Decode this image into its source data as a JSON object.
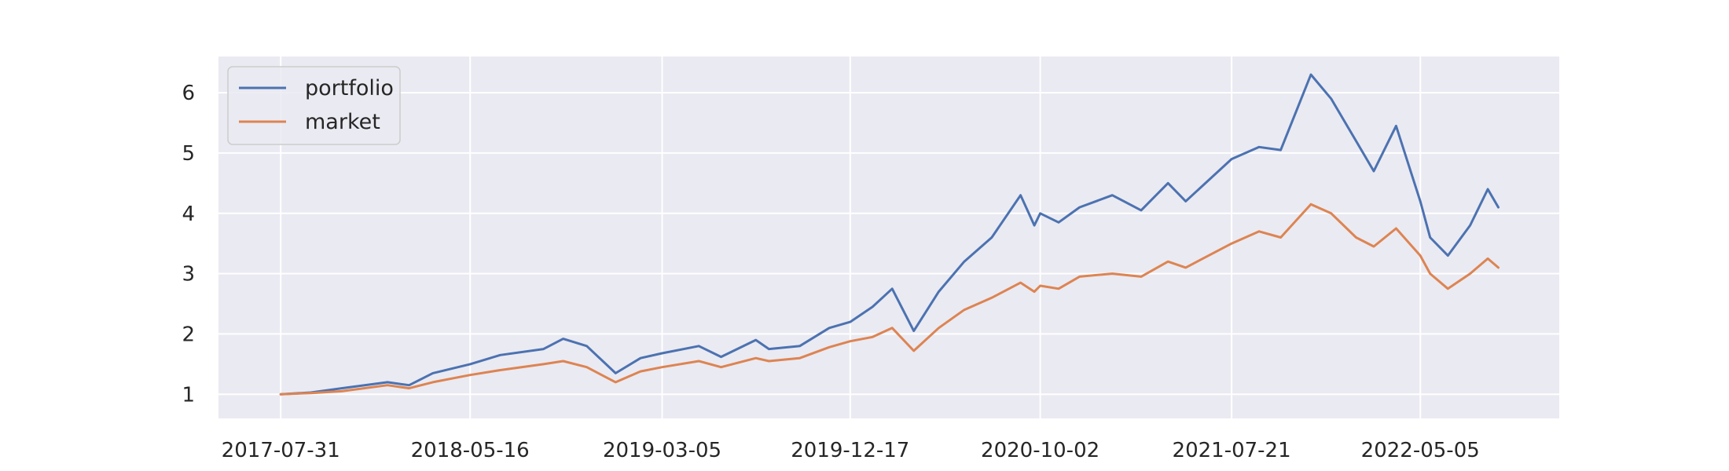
{
  "chart_data": {
    "type": "line",
    "title": "",
    "xlabel": "",
    "ylabel": "",
    "grid": true,
    "legend_position": "top-left",
    "background_color": "#eaeaf2",
    "grid_color": "#ffffff",
    "x_range": [
      "2017-04-27",
      "2022-12-03"
    ],
    "ylim": [
      0.6,
      6.6
    ],
    "x_ticks": [
      "2017-07-31",
      "2018-05-16",
      "2019-03-05",
      "2019-12-17",
      "2020-10-02",
      "2021-07-21",
      "2022-05-05"
    ],
    "y_ticks": [
      1,
      2,
      3,
      4,
      5,
      6
    ],
    "series": [
      {
        "name": "portfolio",
        "color": "#4c72b0",
        "points": [
          [
            "2017-07-31",
            1.0
          ],
          [
            "2017-09-15",
            1.03
          ],
          [
            "2017-11-01",
            1.1
          ],
          [
            "2018-01-10",
            1.2
          ],
          [
            "2018-02-12",
            1.15
          ],
          [
            "2018-03-20",
            1.35
          ],
          [
            "2018-05-16",
            1.5
          ],
          [
            "2018-07-01",
            1.65
          ],
          [
            "2018-09-05",
            1.75
          ],
          [
            "2018-10-05",
            1.92
          ],
          [
            "2018-11-10",
            1.8
          ],
          [
            "2018-12-24",
            1.35
          ],
          [
            "2019-01-31",
            1.6
          ],
          [
            "2019-03-05",
            1.68
          ],
          [
            "2019-04-30",
            1.8
          ],
          [
            "2019-06-03",
            1.62
          ],
          [
            "2019-07-26",
            1.9
          ],
          [
            "2019-08-15",
            1.75
          ],
          [
            "2019-10-01",
            1.8
          ],
          [
            "2019-11-15",
            2.1
          ],
          [
            "2019-12-17",
            2.2
          ],
          [
            "2020-01-20",
            2.45
          ],
          [
            "2020-02-19",
            2.75
          ],
          [
            "2020-03-23",
            2.05
          ],
          [
            "2020-04-30",
            2.7
          ],
          [
            "2020-06-08",
            3.2
          ],
          [
            "2020-07-20",
            3.6
          ],
          [
            "2020-09-02",
            4.3
          ],
          [
            "2020-09-23",
            3.8
          ],
          [
            "2020-10-02",
            4.0
          ],
          [
            "2020-10-30",
            3.85
          ],
          [
            "2020-12-01",
            4.1
          ],
          [
            "2021-01-20",
            4.3
          ],
          [
            "2021-03-05",
            4.05
          ],
          [
            "2021-04-15",
            4.5
          ],
          [
            "2021-05-12",
            4.2
          ],
          [
            "2021-07-21",
            4.9
          ],
          [
            "2021-09-01",
            5.1
          ],
          [
            "2021-10-04",
            5.05
          ],
          [
            "2021-11-19",
            6.3
          ],
          [
            "2021-12-20",
            5.9
          ],
          [
            "2022-01-27",
            5.2
          ],
          [
            "2022-02-23",
            4.7
          ],
          [
            "2022-03-29",
            5.45
          ],
          [
            "2022-05-05",
            4.2
          ],
          [
            "2022-05-20",
            3.6
          ],
          [
            "2022-06-16",
            3.3
          ],
          [
            "2022-07-20",
            3.8
          ],
          [
            "2022-08-16",
            4.4
          ],
          [
            "2022-09-01",
            4.1
          ]
        ]
      },
      {
        "name": "market",
        "color": "#dd8452",
        "points": [
          [
            "2017-07-31",
            1.0
          ],
          [
            "2017-09-15",
            1.02
          ],
          [
            "2017-11-01",
            1.05
          ],
          [
            "2018-01-10",
            1.15
          ],
          [
            "2018-02-12",
            1.1
          ],
          [
            "2018-03-20",
            1.2
          ],
          [
            "2018-05-16",
            1.32
          ],
          [
            "2018-07-01",
            1.4
          ],
          [
            "2018-09-05",
            1.5
          ],
          [
            "2018-10-05",
            1.55
          ],
          [
            "2018-11-10",
            1.45
          ],
          [
            "2018-12-24",
            1.2
          ],
          [
            "2019-01-31",
            1.38
          ],
          [
            "2019-03-05",
            1.45
          ],
          [
            "2019-04-30",
            1.55
          ],
          [
            "2019-06-03",
            1.45
          ],
          [
            "2019-07-26",
            1.6
          ],
          [
            "2019-08-15",
            1.55
          ],
          [
            "2019-10-01",
            1.6
          ],
          [
            "2019-11-15",
            1.78
          ],
          [
            "2019-12-17",
            1.88
          ],
          [
            "2020-01-20",
            1.95
          ],
          [
            "2020-02-19",
            2.1
          ],
          [
            "2020-03-23",
            1.72
          ],
          [
            "2020-04-30",
            2.1
          ],
          [
            "2020-06-08",
            2.4
          ],
          [
            "2020-07-20",
            2.6
          ],
          [
            "2020-09-02",
            2.85
          ],
          [
            "2020-09-23",
            2.7
          ],
          [
            "2020-10-02",
            2.8
          ],
          [
            "2020-10-30",
            2.75
          ],
          [
            "2020-12-01",
            2.95
          ],
          [
            "2021-01-20",
            3.0
          ],
          [
            "2021-03-05",
            2.95
          ],
          [
            "2021-04-15",
            3.2
          ],
          [
            "2021-05-12",
            3.1
          ],
          [
            "2021-07-21",
            3.5
          ],
          [
            "2021-09-01",
            3.7
          ],
          [
            "2021-10-04",
            3.6
          ],
          [
            "2021-11-19",
            4.15
          ],
          [
            "2021-12-20",
            4.0
          ],
          [
            "2022-01-27",
            3.6
          ],
          [
            "2022-02-23",
            3.45
          ],
          [
            "2022-03-29",
            3.75
          ],
          [
            "2022-05-05",
            3.3
          ],
          [
            "2022-05-20",
            3.0
          ],
          [
            "2022-06-16",
            2.75
          ],
          [
            "2022-07-20",
            3.0
          ],
          [
            "2022-08-16",
            3.25
          ],
          [
            "2022-09-01",
            3.1
          ]
        ]
      }
    ]
  }
}
